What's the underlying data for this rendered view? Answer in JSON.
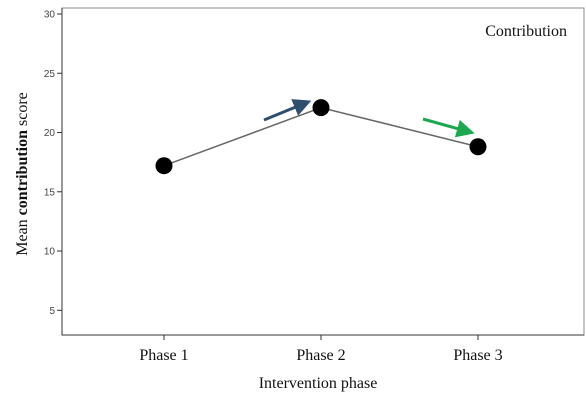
{
  "chart_data": {
    "type": "line",
    "categories": [
      "Phase 1",
      "Phase 2",
      "Phase 3"
    ],
    "values": [
      17.2,
      22.1,
      18.8
    ],
    "annotation": "Contribution",
    "xlabel": "Intervention phase",
    "ylabel_prefix": "Mean ",
    "ylabel_bold": "contribution",
    "ylabel_suffix": " score",
    "ylim": [
      3,
      30
    ],
    "yticks": [
      5,
      10,
      15,
      20,
      25,
      30
    ],
    "grid": false,
    "arrows": [
      {
        "direction": "up",
        "color": "#2e4f6e"
      },
      {
        "direction": "down",
        "color": "#1ba84e"
      }
    ],
    "line_color": "#666666",
    "marker_color": "#000000"
  }
}
